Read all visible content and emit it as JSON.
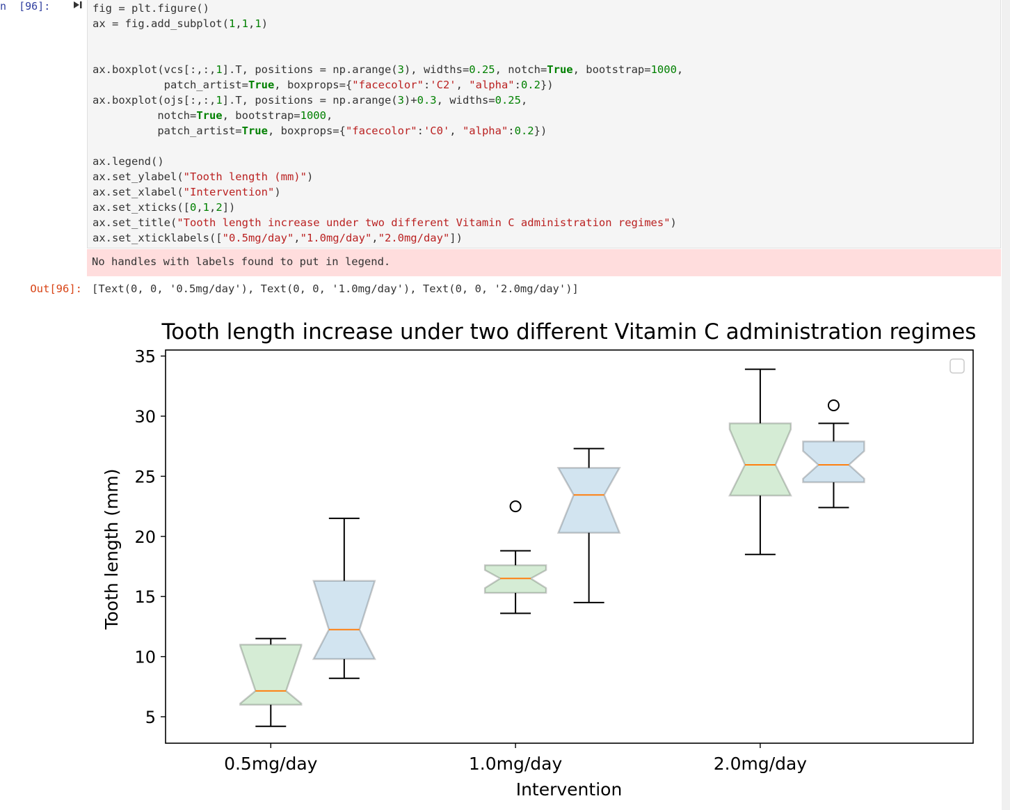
{
  "notebook": {
    "in_prompt": "n  [96]:",
    "out_prompt": "Out[96]:",
    "code_lines": [
      [
        {
          "t": "fig = plt.figure()",
          "c": ""
        }
      ],
      [
        {
          "t": "ax = fig.add_subplot(",
          "c": ""
        },
        {
          "t": "1",
          "c": "num"
        },
        {
          "t": ",",
          "c": ""
        },
        {
          "t": "1",
          "c": "num"
        },
        {
          "t": ",",
          "c": ""
        },
        {
          "t": "1",
          "c": "num"
        },
        {
          "t": ")",
          "c": ""
        }
      ],
      [],
      [],
      [
        {
          "t": "ax.boxplot(vcs[:,:,",
          "c": ""
        },
        {
          "t": "1",
          "c": "num"
        },
        {
          "t": "].T, positions = np.arange(",
          "c": ""
        },
        {
          "t": "3",
          "c": "num"
        },
        {
          "t": "), widths=",
          "c": ""
        },
        {
          "t": "0.25",
          "c": "num"
        },
        {
          "t": ", notch=",
          "c": ""
        },
        {
          "t": "True",
          "c": "kw"
        },
        {
          "t": ", bootstrap=",
          "c": ""
        },
        {
          "t": "1000",
          "c": "num"
        },
        {
          "t": ",",
          "c": ""
        }
      ],
      [
        {
          "t": "           patch_artist=",
          "c": ""
        },
        {
          "t": "True",
          "c": "kw"
        },
        {
          "t": ", boxprops={",
          "c": ""
        },
        {
          "t": "\"facecolor\"",
          "c": "str"
        },
        {
          "t": ":",
          "c": ""
        },
        {
          "t": "'C2'",
          "c": "str"
        },
        {
          "t": ", ",
          "c": ""
        },
        {
          "t": "\"alpha\"",
          "c": "str"
        },
        {
          "t": ":",
          "c": ""
        },
        {
          "t": "0.2",
          "c": "num"
        },
        {
          "t": "})",
          "c": ""
        }
      ],
      [
        {
          "t": "ax.boxplot(ojs[:,:,",
          "c": ""
        },
        {
          "t": "1",
          "c": "num"
        },
        {
          "t": "].T, positions = np.arange(",
          "c": ""
        },
        {
          "t": "3",
          "c": "num"
        },
        {
          "t": ")+",
          "c": ""
        },
        {
          "t": "0.3",
          "c": "num"
        },
        {
          "t": ", widths=",
          "c": ""
        },
        {
          "t": "0.25",
          "c": "num"
        },
        {
          "t": ",",
          "c": ""
        }
      ],
      [
        {
          "t": "          notch=",
          "c": ""
        },
        {
          "t": "True",
          "c": "kw"
        },
        {
          "t": ", bootstrap=",
          "c": ""
        },
        {
          "t": "1000",
          "c": "num"
        },
        {
          "t": ",",
          "c": ""
        }
      ],
      [
        {
          "t": "          patch_artist=",
          "c": ""
        },
        {
          "t": "True",
          "c": "kw"
        },
        {
          "t": ", boxprops={",
          "c": ""
        },
        {
          "t": "\"facecolor\"",
          "c": "str"
        },
        {
          "t": ":",
          "c": ""
        },
        {
          "t": "'C0'",
          "c": "str"
        },
        {
          "t": ", ",
          "c": ""
        },
        {
          "t": "\"alpha\"",
          "c": "str"
        },
        {
          "t": ":",
          "c": ""
        },
        {
          "t": "0.2",
          "c": "num"
        },
        {
          "t": "})",
          "c": ""
        }
      ],
      [],
      [
        {
          "t": "ax.legend()",
          "c": ""
        }
      ],
      [
        {
          "t": "ax.set_ylabel(",
          "c": ""
        },
        {
          "t": "\"Tooth length (mm)\"",
          "c": "str"
        },
        {
          "t": ")",
          "c": ""
        }
      ],
      [
        {
          "t": "ax.set_xlabel(",
          "c": ""
        },
        {
          "t": "\"Intervention\"",
          "c": "str"
        },
        {
          "t": ")",
          "c": ""
        }
      ],
      [
        {
          "t": "ax.set_xticks([",
          "c": ""
        },
        {
          "t": "0",
          "c": "num"
        },
        {
          "t": ",",
          "c": ""
        },
        {
          "t": "1",
          "c": "num"
        },
        {
          "t": ",",
          "c": ""
        },
        {
          "t": "2",
          "c": "num"
        },
        {
          "t": "])",
          "c": ""
        }
      ],
      [
        {
          "t": "ax.set_title(",
          "c": ""
        },
        {
          "t": "\"Tooth length increase under two different Vitamin C administration regimes\"",
          "c": "str"
        },
        {
          "t": ")",
          "c": ""
        }
      ],
      [
        {
          "t": "ax.set_xticklabels([",
          "c": ""
        },
        {
          "t": "\"0.5mg/day\"",
          "c": "str"
        },
        {
          "t": ",",
          "c": ""
        },
        {
          "t": "\"1.0mg/day\"",
          "c": "str"
        },
        {
          "t": ",",
          "c": ""
        },
        {
          "t": "\"2.0mg/day\"",
          "c": "str"
        },
        {
          "t": "])",
          "c": ""
        }
      ]
    ],
    "stderr": "No handles with labels found to put in legend.",
    "output_text": "[Text(0, 0, '0.5mg/day'), Text(0, 0, '1.0mg/day'), Text(0, 0, '2.0mg/day')]"
  },
  "chart_data": {
    "type": "boxplot",
    "title": "Tooth length increase under two different Vitamin C administration regimes",
    "xlabel": "Intervention",
    "ylabel": "Tooth length (mm)",
    "xlim": [
      -0.43,
      2.87
    ],
    "ylim": [
      2.8,
      35.5
    ],
    "yticks": [
      5,
      10,
      15,
      20,
      25,
      30,
      35
    ],
    "xticks": [
      0,
      1,
      2
    ],
    "xticklabels": [
      "0.5mg/day",
      "1.0mg/day",
      "2.0mg/day"
    ],
    "legend": "empty, upper right",
    "median_color": "#ff7f0e",
    "box_edge_color": "#000000",
    "series": [
      {
        "facecolor": "#2ca02c",
        "alpha": 0.2,
        "offset": 0,
        "boxes": [
          {
            "position": 0,
            "whislo": 4.2,
            "q1": 6.0,
            "ci_lo": 6.1,
            "med": 7.15,
            "ci_hi": 10.9,
            "q3": 11.0,
            "whishi": 11.5,
            "fliers": []
          },
          {
            "position": 1,
            "whislo": 13.6,
            "q1": 15.3,
            "ci_lo": 15.7,
            "med": 16.5,
            "ci_hi": 17.2,
            "q3": 17.6,
            "whishi": 18.8,
            "fliers": [
              22.5
            ]
          },
          {
            "position": 2,
            "whislo": 18.5,
            "q1": 23.4,
            "ci_lo": 23.4,
            "med": 25.95,
            "ci_hi": 28.9,
            "q3": 29.4,
            "whishi": 33.9,
            "fliers": []
          }
        ]
      },
      {
        "facecolor": "#1f77b4",
        "alpha": 0.2,
        "offset": 0.3,
        "boxes": [
          {
            "position": 0.3,
            "whislo": 8.2,
            "q1": 9.8,
            "ci_lo": 9.8,
            "med": 12.25,
            "ci_hi": 16.3,
            "q3": 16.3,
            "whishi": 21.5,
            "fliers": []
          },
          {
            "position": 1.3,
            "whislo": 14.5,
            "q1": 20.3,
            "ci_lo": 20.3,
            "med": 23.45,
            "ci_hi": 25.7,
            "q3": 25.7,
            "whishi": 27.3,
            "fliers": []
          },
          {
            "position": 2.3,
            "whislo": 22.4,
            "q1": 24.5,
            "ci_lo": 24.8,
            "med": 25.95,
            "ci_hi": 27.1,
            "q3": 27.9,
            "whishi": 29.4,
            "fliers": [
              30.9
            ]
          }
        ]
      }
    ]
  }
}
